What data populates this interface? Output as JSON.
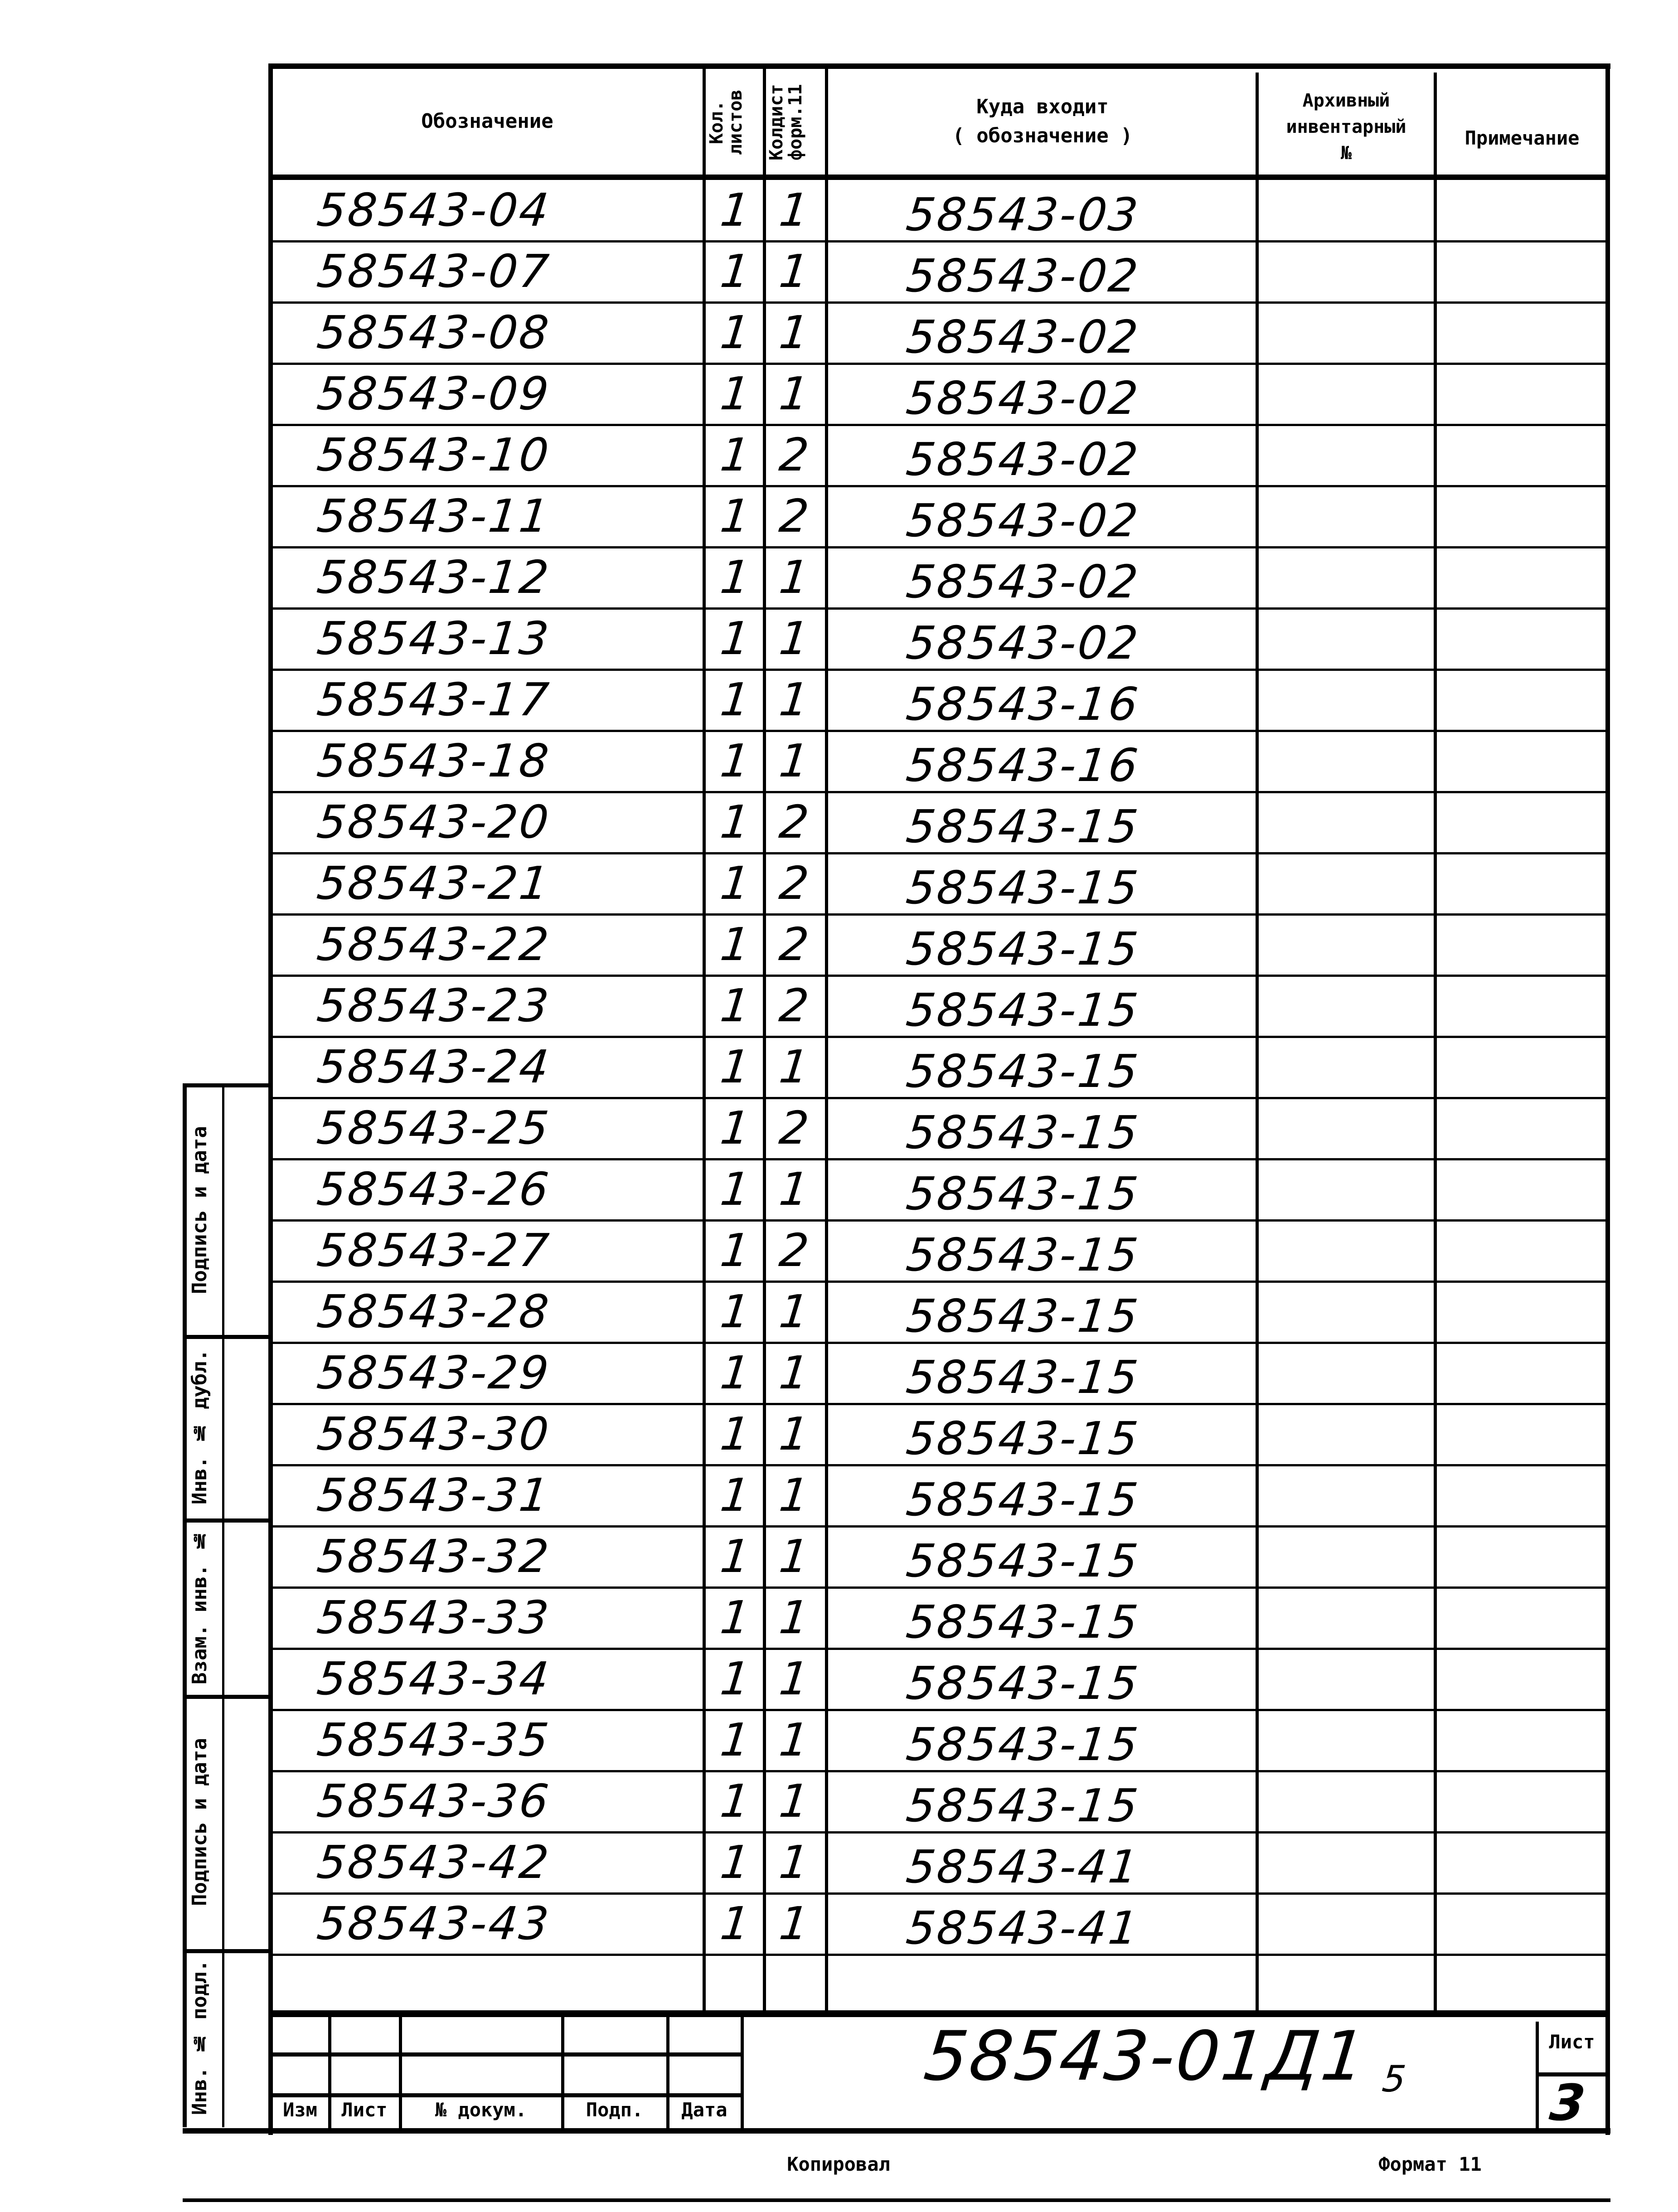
{
  "header": {
    "designation": "Обозначение",
    "sheet_count": "Кол. листов",
    "copy_count": "Колдист форм.11",
    "where_used": "Куда входит",
    "where_used_sub": "( обозначение )",
    "archive_1": "Архивный",
    "archive_2": "инвентарный",
    "archive_3": "№",
    "note": "Примечание"
  },
  "rows": [
    {
      "designation": "58543-04",
      "sheets": "1",
      "copies": "1",
      "where_used": "58543-03"
    },
    {
      "designation": "58543-07",
      "sheets": "1",
      "copies": "1",
      "where_used": "58543-02"
    },
    {
      "designation": "58543-08",
      "sheets": "1",
      "copies": "1",
      "where_used": "58543-02"
    },
    {
      "designation": "58543-09",
      "sheets": "1",
      "copies": "1",
      "where_used": "58543-02"
    },
    {
      "designation": "58543-10",
      "sheets": "1",
      "copies": "2",
      "where_used": "58543-02"
    },
    {
      "designation": "58543-11",
      "sheets": "1",
      "copies": "2",
      "where_used": "58543-02"
    },
    {
      "designation": "58543-12",
      "sheets": "1",
      "copies": "1",
      "where_used": "58543-02"
    },
    {
      "designation": "58543-13",
      "sheets": "1",
      "copies": "1",
      "where_used": "58543-02"
    },
    {
      "designation": "58543-17",
      "sheets": "1",
      "copies": "1",
      "where_used": "58543-16"
    },
    {
      "designation": "58543-18",
      "sheets": "1",
      "copies": "1",
      "where_used": "58543-16"
    },
    {
      "designation": "58543-20",
      "sheets": "1",
      "copies": "2",
      "where_used": "58543-15"
    },
    {
      "designation": "58543-21",
      "sheets": "1",
      "copies": "2",
      "where_used": "58543-15"
    },
    {
      "designation": "58543-22",
      "sheets": "1",
      "copies": "2",
      "where_used": "58543-15"
    },
    {
      "designation": "58543-23",
      "sheets": "1",
      "copies": "2",
      "where_used": "58543-15"
    },
    {
      "designation": "58543-24",
      "sheets": "1",
      "copies": "1",
      "where_used": "58543-15"
    },
    {
      "designation": "58543-25",
      "sheets": "1",
      "copies": "2",
      "where_used": "58543-15"
    },
    {
      "designation": "58543-26",
      "sheets": "1",
      "copies": "1",
      "where_used": "58543-15"
    },
    {
      "designation": "58543-27",
      "sheets": "1",
      "copies": "2",
      "where_used": "58543-15"
    },
    {
      "designation": "58543-28",
      "sheets": "1",
      "copies": "1",
      "where_used": "58543-15"
    },
    {
      "designation": "58543-29",
      "sheets": "1",
      "copies": "1",
      "where_used": "58543-15"
    },
    {
      "designation": "58543-30",
      "sheets": "1",
      "copies": "1",
      "where_used": "58543-15"
    },
    {
      "designation": "58543-31",
      "sheets": "1",
      "copies": "1",
      "where_used": "58543-15"
    },
    {
      "designation": "58543-32",
      "sheets": "1",
      "copies": "1",
      "where_used": "58543-15"
    },
    {
      "designation": "58543-33",
      "sheets": "1",
      "copies": "1",
      "where_used": "58543-15"
    },
    {
      "designation": "58543-34",
      "sheets": "1",
      "copies": "1",
      "where_used": "58543-15"
    },
    {
      "designation": "58543-35",
      "sheets": "1",
      "copies": "1",
      "where_used": "58543-15"
    },
    {
      "designation": "58543-36",
      "sheets": "1",
      "copies": "1",
      "where_used": "58543-15"
    },
    {
      "designation": "58543-42",
      "sheets": "1",
      "copies": "1",
      "where_used": "58543-41"
    },
    {
      "designation": "58543-43",
      "sheets": "1",
      "copies": "1",
      "where_used": "58543-41"
    }
  ],
  "side_labels": {
    "sign_date_1": "Подпись и дата",
    "inv_dup": "Инв. № дубл.",
    "replace_inv": "Взам. инв. №",
    "sign_date_2": "Подпись и дата",
    "inv_orig": "Инв. № подл."
  },
  "title_block": {
    "change": "Изм",
    "sheet": "Лист",
    "doc_no": "№ докум.",
    "signature": "Подп.",
    "date": "Дата",
    "document_code": "58543-01Д1",
    "sheet_label": "Лист",
    "sheet_number": "3",
    "mark": "5"
  },
  "footer": {
    "copied": "Копировал",
    "format": "Формат 11"
  }
}
